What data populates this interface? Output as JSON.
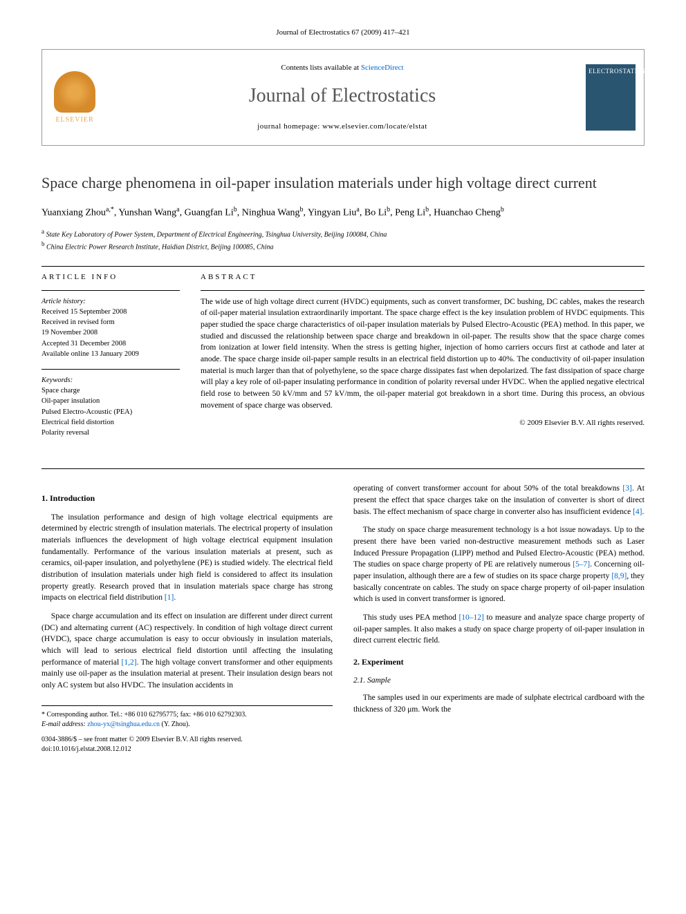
{
  "header_ref": "Journal of Electrostatics 67 (2009) 417–421",
  "contents_prefix": "Contents lists available at ",
  "contents_link": "ScienceDirect",
  "journal_name": "Journal of Electrostatics",
  "homepage_prefix": "journal homepage: ",
  "homepage_url": "www.elsevier.com/locate/elstat",
  "elsevier_label": "ELSEVIER",
  "cover_title": "ELECTROSTATICS",
  "title": "Space charge phenomena in oil-paper insulation materials under high voltage direct current",
  "authors_html": "Yuanxiang Zhou",
  "authors": [
    {
      "name": "Yuanxiang Zhou",
      "aff": "a,*"
    },
    {
      "name": "Yunshan Wang",
      "aff": "a"
    },
    {
      "name": "Guangfan Li",
      "aff": "b"
    },
    {
      "name": "Ninghua Wang",
      "aff": "b"
    },
    {
      "name": "Yingyan Liu",
      "aff": "a"
    },
    {
      "name": "Bo Li",
      "aff": "b"
    },
    {
      "name": "Peng Li",
      "aff": "b"
    },
    {
      "name": "Huanchao Cheng",
      "aff": "b"
    }
  ],
  "affiliations": [
    {
      "sup": "a",
      "text": "State Key Laboratory of Power System, Department of Electrical Engineering, Tsinghua University, Beijing 100084, China"
    },
    {
      "sup": "b",
      "text": "China Electric Power Research Institute, Haidian District, Beijing 100085, China"
    }
  ],
  "article_info_label": "ARTICLE INFO",
  "abstract_label": "ABSTRACT",
  "history_label": "Article history:",
  "history": [
    "Received 15 September 2008",
    "Received in revised form",
    "19 November 2008",
    "Accepted 31 December 2008",
    "Available online 13 January 2009"
  ],
  "keywords_label": "Keywords:",
  "keywords": [
    "Space charge",
    "Oil-paper insulation",
    "Pulsed Electro-Acoustic (PEA)",
    "Electrical field distortion",
    "Polarity reversal"
  ],
  "abstract": "The wide use of high voltage direct current (HVDC) equipments, such as convert transformer, DC bushing, DC cables, makes the research of oil-paper material insulation extraordinarily important. The space charge effect is the key insulation problem of HVDC equipments. This paper studied the space charge characteristics of oil-paper insulation materials by Pulsed Electro-Acoustic (PEA) method. In this paper, we studied and discussed the relationship between space charge and breakdown in oil-paper. The results show that the space charge comes from ionization at lower field intensity. When the stress is getting higher, injection of homo carriers occurs first at cathode and later at anode. The space charge inside oil-paper sample results in an electrical field distortion up to 40%. The conductivity of oil-paper insulation material is much larger than that of polyethylene, so the space charge dissipates fast when depolarized. The fast dissipation of space charge will play a key role of oil-paper insulating performance in condition of polarity reversal under HVDC. When the applied negative electrical field rose to between 50 kV/mm and 57 kV/mm, the oil-paper material got breakdown in a short time. During this process, an obvious movement of space charge was observed.",
  "copyright": "© 2009 Elsevier B.V. All rights reserved.",
  "section1_heading": "1. Introduction",
  "intro_p1": "The insulation performance and design of high voltage electrical equipments are determined by electric strength of insulation materials. The electrical property of insulation materials influences the development of high voltage electrical equipment insulation fundamentally. Performance of the various insulation materials at present, such as ceramics, oil-paper insulation, and polyethylene (PE) is studied widely. The electrical field distribution of insulation materials under high field is considered to affect its insulation property greatly. Research proved that in insulation materials space charge has strong impacts on electrical field distribution ",
  "intro_p1_ref": "[1]",
  "intro_p1_end": ".",
  "intro_p2": "Space charge accumulation and its effect on insulation are different under direct current (DC) and alternating current (AC) respectively. In condition of high voltage direct current (HVDC), space charge accumulation is easy to occur obviously in insulation materials, which will lead to serious electrical field distortion until affecting the insulating performance of material ",
  "intro_p2_ref": "[1,2]",
  "intro_p2_end": ". The high voltage convert transformer and other equipments mainly use oil-paper as the insulation material at present. Their insulation design bears not only AC system but also HVDC. The insulation accidents in",
  "col2_p1a": "operating of convert transformer account for about 50% of the total breakdowns ",
  "col2_p1_ref1": "[3]",
  "col2_p1b": ". At present the effect that space charges take on the insulation of converter is short of direct basis. The effect mechanism of space charge in converter also has insufficient evidence ",
  "col2_p1_ref2": "[4]",
  "col2_p1c": ".",
  "col2_p2a": "The study on space charge measurement technology is a hot issue nowadays. Up to the present there have been varied non-destructive measurement methods such as Laser Induced Pressure Propagation (LIPP) method and Pulsed Electro-Acoustic (PEA) method. The studies on space charge property of PE are relatively numerous ",
  "col2_p2_ref1": "[5–7]",
  "col2_p2b": ". Concerning oil-paper insulation, although there are a few of studies on its space charge property ",
  "col2_p2_ref2": "[8,9]",
  "col2_p2c": ", they basically concentrate on cables. The study on space charge property of oil-paper insulation which is used in convert transformer is ignored.",
  "col2_p3a": "This study uses PEA method ",
  "col2_p3_ref": "[10–12]",
  "col2_p3b": " to measure and analyze space charge property of oil-paper samples. It also makes a study on space charge property of oil-paper insulation in direct current electric field.",
  "section2_heading": "2. Experiment",
  "section21_heading": "2.1. Sample",
  "sample_p": "The samples used in our experiments are made of sulphate electrical cardboard with the thickness of 320 μm. Work the",
  "footnote_corresponding": "* Corresponding author. Tel.: +86 010 62795775; fax: +86 010 62792303.",
  "footnote_email_label": "E-mail address: ",
  "footnote_email": "zhou-yx@tsinghua.edu.cn",
  "footnote_email_who": " (Y. Zhou).",
  "footer_issn": "0304-3886/$ – see front matter © 2009 Elsevier B.V. All rights reserved.",
  "footer_doi": "doi:10.1016/j.elstat.2008.12.012",
  "colors": {
    "link": "#0066cc",
    "elsevier_orange": "#e8a84a",
    "cover_bg": "#2a5570",
    "text": "#000000",
    "title_gray": "#555555",
    "border": "#999999"
  }
}
